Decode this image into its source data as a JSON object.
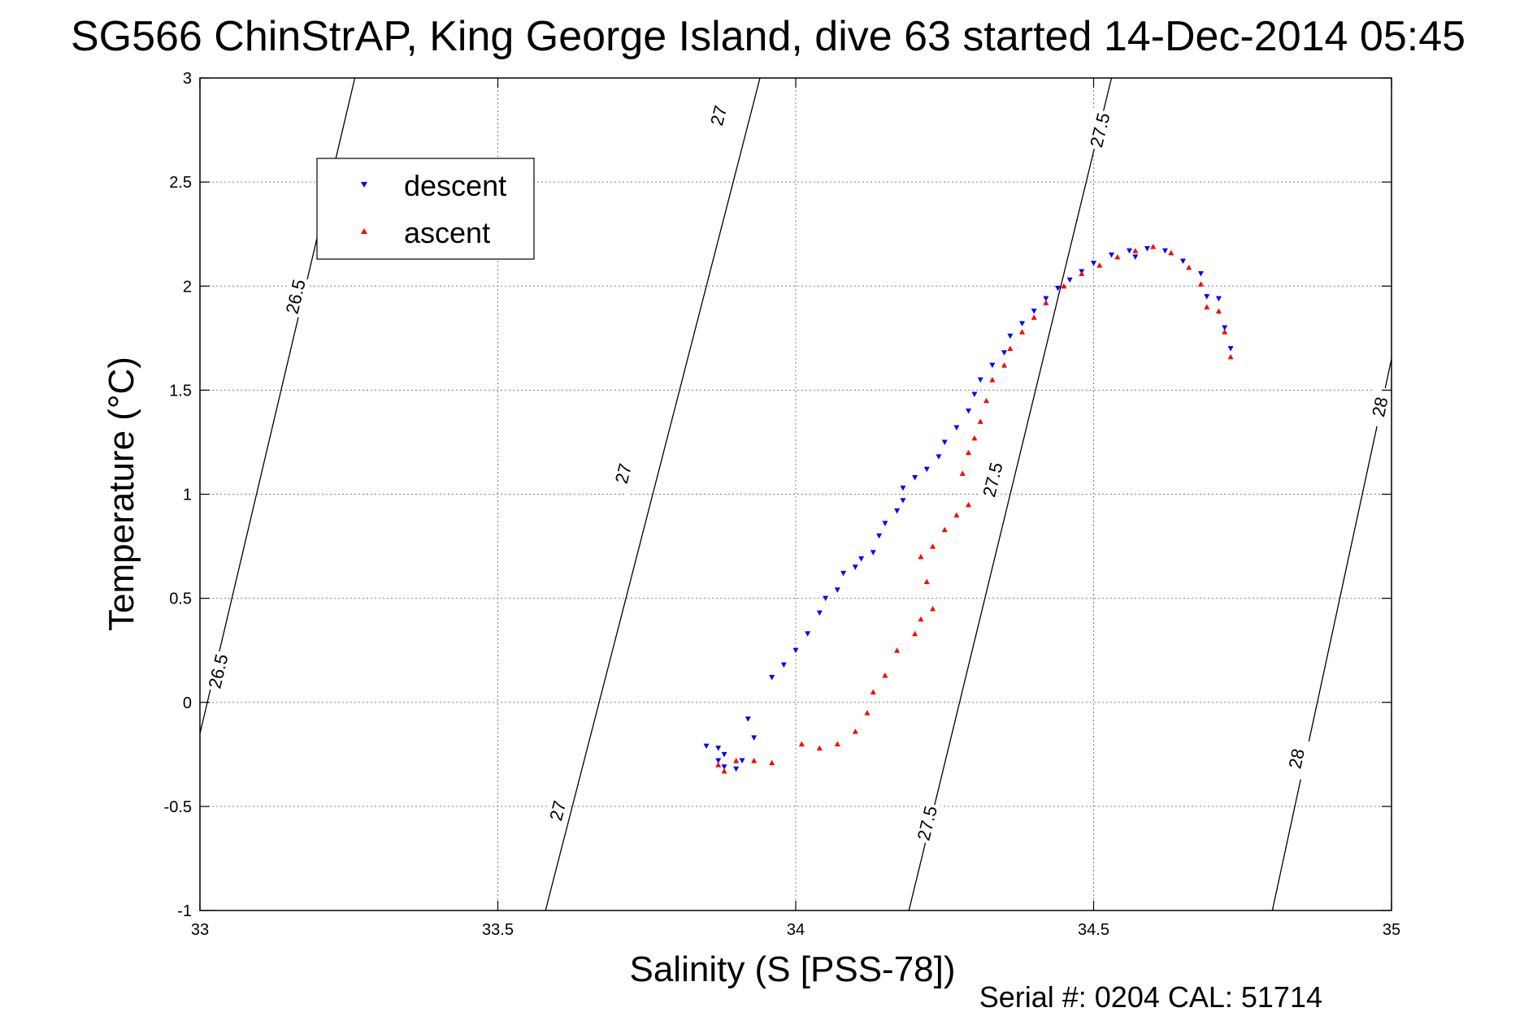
{
  "title": "SG566 ChinStrAP, King George Island, dive 63 started 14-Dec-2014 05:45",
  "serial_note": "Serial #: 0204  CAL: 51714",
  "colors": {
    "descent": "#0000ff",
    "ascent": "#ff0000",
    "contour": "#000000",
    "grid": "#808080"
  },
  "chart_data": {
    "type": "scatter",
    "title": "SG566 ChinStrAP, King George Island, dive 63 started 14-Dec-2014 05:45",
    "xlabel": "Salinity (S [PSS-78])",
    "ylabel": "Temperature (°C)",
    "xlim": [
      33,
      35
    ],
    "ylim": [
      -1,
      3
    ],
    "xticks": [
      33,
      33.5,
      34,
      34.5,
      35
    ],
    "yticks": [
      -1,
      -0.5,
      0,
      0.5,
      1,
      1.5,
      2,
      2.5,
      3
    ],
    "xtick_labels": [
      "33",
      "33.5",
      "34",
      "34.5",
      "35"
    ],
    "ytick_labels": [
      "-1",
      "-0.5",
      "0",
      "0.5",
      "1",
      "1.5",
      "2",
      "2.5",
      "3"
    ],
    "grid": true,
    "legend_position": "top-left",
    "series": [
      {
        "name": "descent",
        "color": "#0000ff",
        "marker": "triangle-down",
        "points": [
          [
            33.85,
            -0.21
          ],
          [
            33.87,
            -0.22
          ],
          [
            33.88,
            -0.25
          ],
          [
            33.87,
            -0.28
          ],
          [
            33.88,
            -0.31
          ],
          [
            33.9,
            -0.32
          ],
          [
            33.91,
            -0.28
          ],
          [
            33.93,
            -0.17
          ],
          [
            33.92,
            -0.08
          ],
          [
            33.96,
            0.12
          ],
          [
            33.98,
            0.18
          ],
          [
            34.0,
            0.25
          ],
          [
            34.02,
            0.33
          ],
          [
            34.04,
            0.43
          ],
          [
            34.05,
            0.5
          ],
          [
            34.07,
            0.54
          ],
          [
            34.08,
            0.62
          ],
          [
            34.1,
            0.65
          ],
          [
            34.11,
            0.69
          ],
          [
            34.13,
            0.72
          ],
          [
            34.14,
            0.8
          ],
          [
            34.15,
            0.86
          ],
          [
            34.17,
            0.92
          ],
          [
            34.18,
            0.97
          ],
          [
            34.18,
            1.03
          ],
          [
            34.2,
            1.08
          ],
          [
            34.22,
            1.12
          ],
          [
            34.24,
            1.18
          ],
          [
            34.25,
            1.25
          ],
          [
            34.27,
            1.32
          ],
          [
            34.29,
            1.4
          ],
          [
            34.3,
            1.48
          ],
          [
            34.31,
            1.55
          ],
          [
            34.33,
            1.62
          ],
          [
            34.35,
            1.68
          ],
          [
            34.36,
            1.76
          ],
          [
            34.38,
            1.82
          ],
          [
            34.4,
            1.88
          ],
          [
            34.42,
            1.94
          ],
          [
            34.44,
            1.99
          ],
          [
            34.46,
            2.03
          ],
          [
            34.48,
            2.07
          ],
          [
            34.5,
            2.11
          ],
          [
            34.53,
            2.15
          ],
          [
            34.56,
            2.17
          ],
          [
            34.59,
            2.18
          ],
          [
            34.57,
            2.14
          ],
          [
            34.62,
            2.17
          ],
          [
            34.65,
            2.12
          ],
          [
            34.68,
            2.06
          ],
          [
            34.69,
            1.95
          ],
          [
            34.71,
            1.94
          ],
          [
            34.72,
            1.8
          ],
          [
            34.73,
            1.7
          ]
        ]
      },
      {
        "name": "ascent",
        "color": "#ff0000",
        "marker": "triangle-up",
        "points": [
          [
            33.87,
            -0.3
          ],
          [
            33.88,
            -0.33
          ],
          [
            33.9,
            -0.28
          ],
          [
            33.93,
            -0.28
          ],
          [
            33.96,
            -0.29
          ],
          [
            34.01,
            -0.2
          ],
          [
            34.04,
            -0.22
          ],
          [
            34.07,
            -0.2
          ],
          [
            34.1,
            -0.14
          ],
          [
            34.12,
            -0.05
          ],
          [
            34.13,
            0.05
          ],
          [
            34.15,
            0.13
          ],
          [
            34.17,
            0.25
          ],
          [
            34.2,
            0.33
          ],
          [
            34.21,
            0.4
          ],
          [
            34.23,
            0.45
          ],
          [
            34.22,
            0.58
          ],
          [
            34.21,
            0.7
          ],
          [
            34.23,
            0.75
          ],
          [
            34.25,
            0.83
          ],
          [
            34.27,
            0.9
          ],
          [
            34.29,
            0.95
          ],
          [
            34.28,
            1.1
          ],
          [
            34.29,
            1.2
          ],
          [
            34.3,
            1.27
          ],
          [
            34.31,
            1.35
          ],
          [
            34.32,
            1.45
          ],
          [
            34.33,
            1.55
          ],
          [
            34.35,
            1.62
          ],
          [
            34.36,
            1.7
          ],
          [
            34.38,
            1.78
          ],
          [
            34.4,
            1.85
          ],
          [
            34.42,
            1.92
          ],
          [
            34.45,
            2.0
          ],
          [
            34.48,
            2.06
          ],
          [
            34.51,
            2.1
          ],
          [
            34.54,
            2.14
          ],
          [
            34.57,
            2.17
          ],
          [
            34.6,
            2.19
          ],
          [
            34.63,
            2.16
          ],
          [
            34.66,
            2.09
          ],
          [
            34.68,
            2.01
          ],
          [
            34.69,
            1.9
          ],
          [
            34.71,
            1.88
          ],
          [
            34.72,
            1.78
          ],
          [
            34.73,
            1.66
          ]
        ]
      }
    ],
    "density_contours": [
      {
        "level": "26.5",
        "points": [
          [
            33.0,
            -0.15
          ],
          [
            33.26,
            3.0
          ]
        ],
        "labels": [
          [
            33.03,
            0.15
          ],
          [
            33.16,
            1.95
          ]
        ]
      },
      {
        "level": "27",
        "points": [
          [
            33.58,
            -1.0
          ],
          [
            33.94,
            3.0
          ]
        ],
        "labels": [
          [
            33.6,
            -0.52
          ],
          [
            33.71,
            1.1
          ],
          [
            33.87,
            2.82
          ]
        ]
      },
      {
        "level": "27.5",
        "points": [
          [
            34.19,
            -1.0
          ],
          [
            34.53,
            3.0
          ]
        ],
        "labels": [
          [
            34.22,
            -0.58
          ],
          [
            34.33,
            1.07
          ],
          [
            34.51,
            2.75
          ]
        ]
      },
      {
        "level": "28",
        "points": [
          [
            34.8,
            -1.0
          ],
          [
            35.0,
            1.65
          ]
        ],
        "labels": [
          [
            34.84,
            -0.27
          ],
          [
            34.98,
            1.42
          ]
        ]
      }
    ]
  }
}
